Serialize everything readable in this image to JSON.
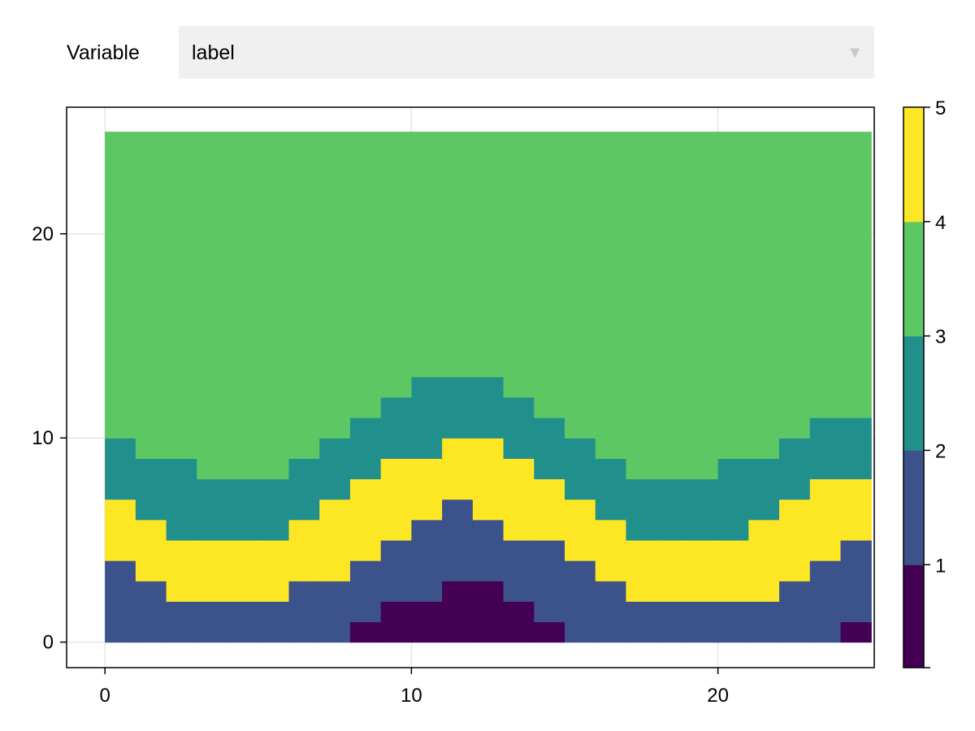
{
  "control": {
    "label": "Variable",
    "selected": "label",
    "arrow_icon": "triangle-down-icon"
  },
  "chart_data": {
    "type": "heatmap",
    "title": "",
    "xlabel": "",
    "ylabel": "",
    "xlim": [
      -1.25,
      25.1
    ],
    "ylim": [
      -1.25,
      26.2
    ],
    "x_ticks": [
      0,
      10,
      20
    ],
    "y_ticks": [
      0,
      10,
      20
    ],
    "grid": true,
    "field_x_range": [
      0,
      25
    ],
    "field_y_range": [
      0,
      25
    ],
    "categories": [
      1,
      2,
      3,
      4,
      5
    ],
    "category_colors": [
      "#440154",
      "#3b528b",
      "#21908c",
      "#5dc863",
      "#fde725"
    ],
    "boundaries": {
      "x": [
        0,
        1,
        2,
        3,
        4,
        5,
        6,
        7,
        8,
        9,
        10,
        11,
        12,
        13,
        14,
        15,
        16,
        17,
        18,
        19,
        20,
        21,
        22,
        23,
        24
      ],
      "label1_top": [
        0,
        0,
        0,
        0,
        0,
        0,
        0,
        0,
        1,
        2,
        2,
        3,
        3,
        2,
        1,
        0,
        0,
        0,
        0,
        0,
        0,
        0,
        0,
        0,
        1
      ],
      "label2_top": [
        4,
        3,
        2,
        2,
        2,
        2,
        3,
        3,
        4,
        5,
        6,
        7,
        6,
        5,
        5,
        4,
        3,
        2,
        2,
        2,
        2,
        2,
        3,
        4,
        5
      ],
      "label5_top": [
        7,
        6,
        5,
        5,
        5,
        5,
        6,
        7,
        8,
        9,
        9,
        10,
        10,
        9,
        8,
        7,
        6,
        5,
        5,
        5,
        5,
        6,
        7,
        8,
        8
      ],
      "label3_top": [
        10,
        9,
        9,
        8,
        8,
        8,
        9,
        10,
        11,
        12,
        13,
        13,
        13,
        12,
        11,
        10,
        9,
        8,
        8,
        8,
        9,
        9,
        10,
        11,
        11
      ]
    },
    "colorbar": {
      "ticks": [
        1,
        2,
        3,
        4,
        5
      ],
      "range": [
        0.1,
        5
      ],
      "segment_categories": [
        1,
        2,
        3,
        4,
        5
      ]
    }
  }
}
